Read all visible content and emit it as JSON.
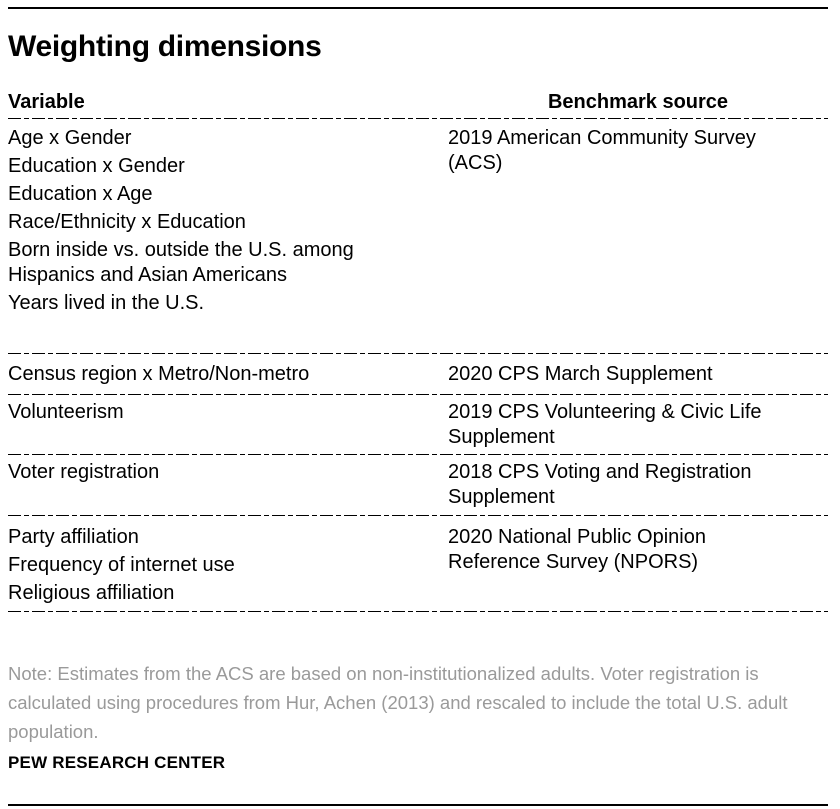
{
  "header": {
    "title": "Weighting dimensions"
  },
  "chart_data": {
    "type": "table",
    "title": "Weighting dimensions",
    "columns": [
      "Variable",
      "Benchmark source"
    ],
    "rows": [
      {
        "variables": [
          "Age x Gender",
          "Education x Gender",
          "Education x Age",
          "Race/Ethnicity x Education",
          "Born inside vs. outside the U.S. among Hispanics and Asian Americans",
          "Years lived in the U.S."
        ],
        "benchmark_source": "2019 American Community Survey (ACS)"
      },
      {
        "variables": [
          "Census region x Metro/Non-metro"
        ],
        "benchmark_source": "2020 CPS March Supplement"
      },
      {
        "variables": [
          "Volunteerism"
        ],
        "benchmark_source": "2019 CPS Volunteering & Civic Life Supplement"
      },
      {
        "variables": [
          "Voter registration"
        ],
        "benchmark_source": "2018 CPS Voting and Registration Supplement"
      },
      {
        "variables": [
          "Party affiliation",
          "Frequency of internet use",
          "Religious affiliation"
        ],
        "benchmark_source": "2020 National Public Opinion Reference Survey (NPORS)"
      }
    ],
    "note": "Note: Estimates from the ACS are based on non-institutionalized adults. Voter registration is calculated using procedures from Hur, Achen (2013) and rescaled to include the total U.S. adult population.",
    "source": "PEW RESEARCH CENTER"
  },
  "table": {
    "columns": [
      {
        "label": "Variable"
      },
      {
        "label": "Benchmark source"
      }
    ],
    "rows": [
      {
        "variables": [
          "Age x Gender",
          "Education x Gender",
          "Education x Age",
          "Race/Ethnicity x Education",
          "Born inside vs. outside the U.S. among\nHispanics and Asian Americans",
          "Years lived in the U.S."
        ],
        "source": "2019 American Community Survey\n(ACS)"
      },
      {
        "variables": [
          "Census region x Metro/Non-metro"
        ],
        "source": "2020 CPS March Supplement"
      },
      {
        "variables": [
          "Volunteerism"
        ],
        "source": "2019 CPS Volunteering & Civic Life\nSupplement"
      },
      {
        "variables": [
          "Voter registration"
        ],
        "source": "2018 CPS Voting and Registration\nSupplement"
      },
      {
        "variables": [
          "Party affiliation",
          "Frequency of internet use",
          "Religious affiliation"
        ],
        "source": "2020 National Public Opinion\nReference Survey (NPORS)"
      }
    ]
  },
  "footer": {
    "note": "Note: Estimates from the ACS are based on non-institutionalized adults. Voter registration is calculated using procedures from Hur, Achen (2013) and rescaled to include the total U.S. adult population.",
    "source_label": "PEW RESEARCH CENTER"
  },
  "colors": {
    "text": "#000000",
    "note_gray": "#9a9a9a",
    "rule": "#000000"
  }
}
